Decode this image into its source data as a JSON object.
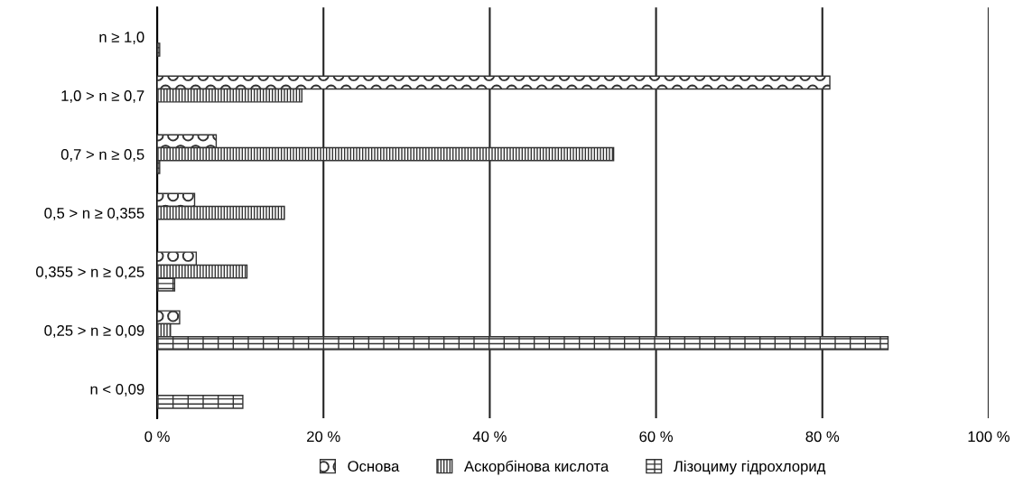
{
  "chart_data": {
    "type": "bar",
    "orientation": "horizontal",
    "categories": [
      "n ≥ 1,0",
      "1,0 > n ≥ 0,7",
      "0,7 > n ≥ 0,5",
      "0,5 > n ≥ 0,355",
      "0,355 > n ≥ 0,25",
      "0,25 > n ≥ 0,09",
      "n < 0,09"
    ],
    "series": [
      {
        "name": "Основа",
        "color": "#333333",
        "values": [
          null,
          80.9,
          7.1,
          4.5,
          4.7,
          2.7,
          null
        ]
      },
      {
        "name": "Аскорбінова кислота",
        "color": "#333333",
        "values": [
          null,
          17.4,
          54.9,
          15.3,
          10.8,
          1.6,
          null
        ]
      },
      {
        "name": "Лізоциму гідрохлорид",
        "color": "#333333",
        "values": [
          0.3,
          null,
          0.3,
          null,
          2.1,
          87.9,
          10.3
        ]
      }
    ],
    "xlim": [
      0,
      100
    ],
    "xticks": [
      {
        "value": 0,
        "label": "0 %"
      },
      {
        "value": 20,
        "label": "20 %"
      },
      {
        "value": 40,
        "label": "40 %"
      },
      {
        "value": 60,
        "label": "60 %"
      },
      {
        "value": 80,
        "label": "80 %"
      },
      {
        "value": 100,
        "label": "100 %"
      }
    ],
    "grid": "x",
    "legend": "bottom"
  }
}
